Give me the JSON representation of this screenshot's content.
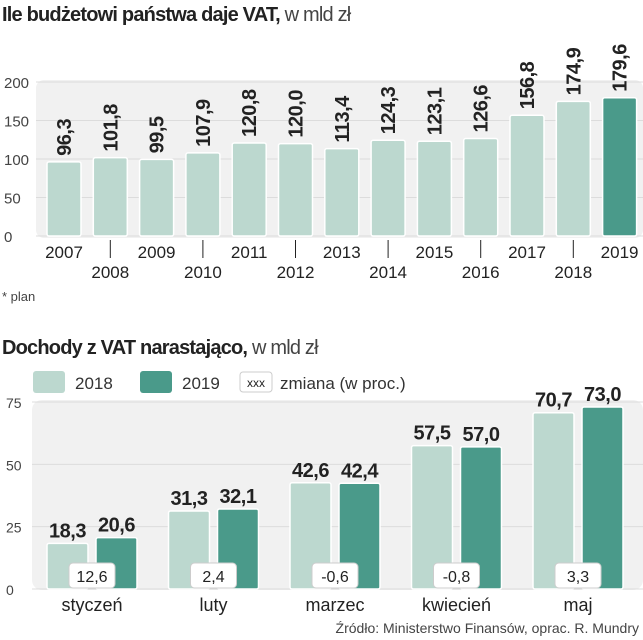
{
  "chart_data": [
    {
      "type": "bar",
      "title": "Ile budżetowi państwa daje VAT,",
      "unit": "w mld zł",
      "categories": [
        "2007",
        "2008",
        "2009",
        "2010",
        "2011",
        "2012",
        "2013",
        "2014",
        "2015",
        "2016",
        "2017",
        "2018",
        "2019"
      ],
      "values": [
        96.3,
        101.8,
        99.5,
        107.9,
        120.8,
        120.0,
        113.4,
        124.3,
        123.1,
        126.6,
        156.8,
        174.9,
        179.6
      ],
      "value_labels": [
        "96,3",
        "101,8",
        "99,5",
        "107,9",
        "120,8",
        "120,0",
        "113,4",
        "124,3",
        "123,1",
        "126,6",
        "156,8",
        "174,9",
        "179,6"
      ],
      "highlight_index": 12,
      "yticks": [
        0,
        50,
        100,
        150,
        200
      ],
      "ylim": [
        0,
        200
      ],
      "footnote": "* plan"
    },
    {
      "type": "bar",
      "title": "Dochody z VAT narastająco,",
      "unit": "w mld zł",
      "categories": [
        "styczeń",
        "luty",
        "marzec",
        "kwiecień",
        "maj"
      ],
      "series": [
        {
          "name": "2018",
          "values": [
            18.3,
            31.3,
            42.6,
            57.5,
            70.7
          ],
          "labels": [
            "18,3",
            "31,3",
            "42,6",
            "57,5",
            "70,7"
          ]
        },
        {
          "name": "2019",
          "values": [
            20.6,
            32.1,
            42.4,
            57.0,
            73.0
          ],
          "labels": [
            "20,6",
            "32,1",
            "42,4",
            "57,0",
            "73,0"
          ]
        }
      ],
      "change_labels": [
        "12,6",
        "2,4",
        "-0,6",
        "-0,8",
        "3,3"
      ],
      "legend": {
        "placeholder": "xxx",
        "change": "zmiana (w proc.)"
      },
      "yticks": [
        0,
        25,
        50,
        75
      ],
      "ylim": [
        0,
        75
      ]
    }
  ],
  "colors": {
    "light": "#bcd8cf",
    "dark": "#4a9a8a",
    "panel": "#f1f1f1",
    "grid": "#dcdcdc"
  },
  "source": "Źródło: Ministerstwo Finansów, oprac. R. Mundry"
}
